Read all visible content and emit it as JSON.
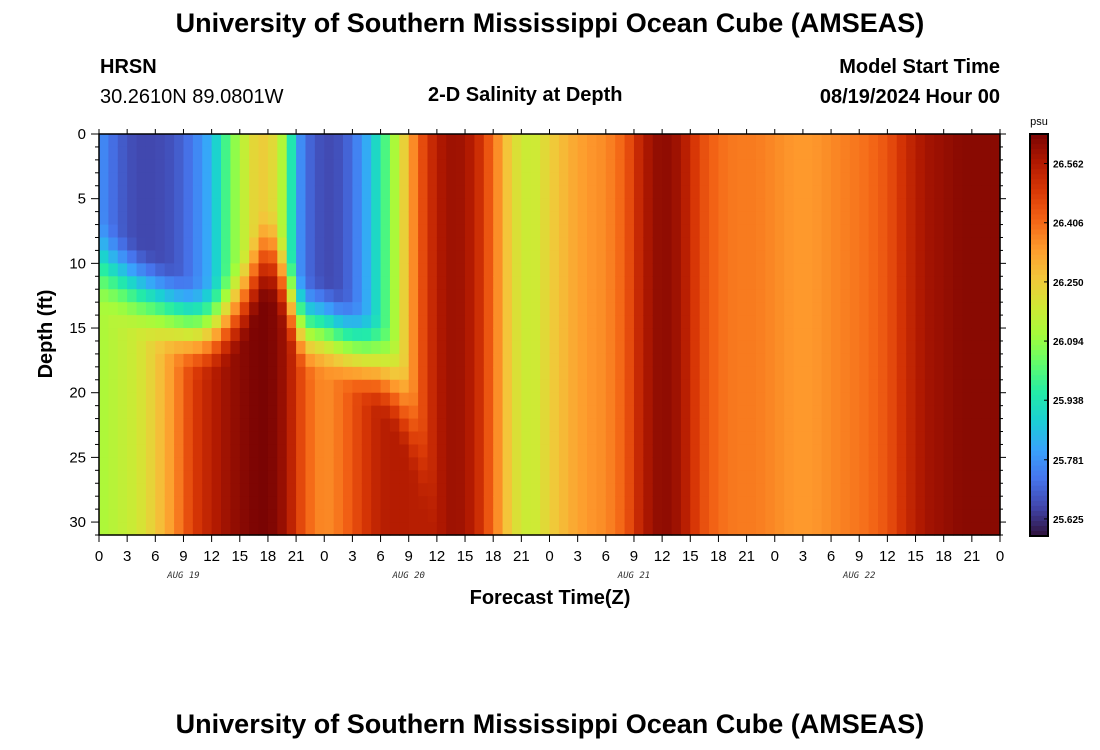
{
  "page": {
    "title": "University of Southern Mississippi Ocean Cube (AMSEAS)",
    "footer_title": "University of Southern Mississippi Ocean Cube (AMSEAS)",
    "station": "HRSN",
    "coords": "30.2610N  89.0801W",
    "plot_title": "2-D Salinity at Depth",
    "model_label": "Model Start Time",
    "model_start": "08/19/2024 Hour 00"
  },
  "chart_data": {
    "type": "heatmap",
    "title": "2-D Salinity at Depth",
    "xlabel": "Forecast Time(Z)",
    "ylabel": "Depth (ft)",
    "x_hours_range": [
      0,
      96
    ],
    "ylim": [
      0,
      31
    ],
    "x_tick_labels": [
      "0",
      "3",
      "6",
      "9",
      "12",
      "15",
      "18",
      "21",
      "0",
      "3",
      "6",
      "9",
      "12",
      "15",
      "18",
      "21",
      "0",
      "3",
      "6",
      "9",
      "12",
      "15",
      "18",
      "21",
      "0",
      "3",
      "6",
      "9",
      "12",
      "15",
      "18",
      "21",
      "0"
    ],
    "day_labels": [
      "AUG 19",
      "AUG 20",
      "AUG 21",
      "AUG 22"
    ],
    "y_ticks": [
      0,
      5,
      10,
      15,
      20,
      25,
      30
    ],
    "colorbar": {
      "unit": "psu",
      "range": [
        25.58,
        26.64
      ],
      "labels": [
        "26.562",
        "26.406",
        "26.250",
        "26.094",
        "25.938",
        "25.781",
        "25.625"
      ],
      "colors": [
        "#30123b",
        "#4145ab",
        "#4675ed",
        "#39a2fc",
        "#1bcfd4",
        "#24eca6",
        "#61fc6c",
        "#a4fc3b",
        "#d1e834",
        "#f3c63a",
        "#fe9b2d",
        "#f36315",
        "#d93806",
        "#b11901",
        "#7a0403"
      ]
    },
    "salinity_model": {
      "column_profiles_hours": [
        0,
        2,
        4,
        6,
        8,
        10,
        12,
        14,
        16,
        17,
        18,
        19,
        20,
        21,
        22,
        24,
        26,
        28,
        30,
        32,
        34,
        36,
        38,
        40,
        42,
        44,
        46,
        48,
        50,
        52,
        54,
        56,
        58,
        60,
        62,
        64,
        66,
        68,
        70,
        72,
        74,
        76,
        78,
        80,
        82,
        84,
        86,
        88,
        90,
        92,
        94,
        96
      ],
      "surface_values": [
        25.78,
        25.7,
        25.66,
        25.66,
        25.68,
        25.74,
        25.84,
        26.05,
        26.2,
        26.25,
        26.24,
        26.2,
        26.06,
        25.82,
        25.72,
        25.66,
        25.68,
        25.78,
        25.95,
        26.18,
        26.42,
        26.56,
        26.6,
        26.55,
        26.4,
        26.22,
        26.16,
        26.24,
        26.3,
        26.34,
        26.36,
        26.42,
        26.56,
        26.62,
        26.58,
        26.46,
        26.4,
        26.38,
        26.38,
        26.36,
        26.34,
        26.34,
        26.36,
        26.38,
        26.4,
        26.44,
        26.52,
        26.58,
        26.6,
        26.62,
        26.62,
        26.62
      ],
      "bottom_values": [
        26.12,
        26.15,
        26.18,
        26.25,
        26.35,
        26.48,
        26.55,
        26.6,
        26.63,
        26.64,
        26.64,
        26.62,
        26.58,
        26.5,
        26.42,
        26.35,
        26.4,
        26.48,
        26.55,
        26.56,
        26.55,
        26.56,
        26.6,
        26.55,
        26.4,
        26.22,
        26.16,
        26.24,
        26.3,
        26.34,
        26.36,
        26.42,
        26.56,
        26.62,
        26.58,
        26.46,
        26.4,
        26.38,
        26.38,
        26.36,
        26.34,
        26.34,
        26.36,
        26.38,
        26.4,
        26.44,
        26.52,
        26.58,
        26.6,
        26.62,
        26.62,
        26.62
      ],
      "halocline_depth_ft": [
        10,
        11,
        12,
        13,
        14,
        15,
        15,
        14,
        12,
        10,
        9,
        10,
        12,
        14,
        15,
        15,
        16,
        17,
        18,
        20,
        24,
        30,
        31,
        31,
        31,
        31,
        31,
        31,
        31,
        31,
        31,
        31,
        31,
        31,
        31,
        31,
        31,
        31,
        31,
        31,
        31,
        31,
        31,
        31,
        31,
        31,
        31,
        31,
        31,
        31,
        31,
        31
      ]
    }
  }
}
